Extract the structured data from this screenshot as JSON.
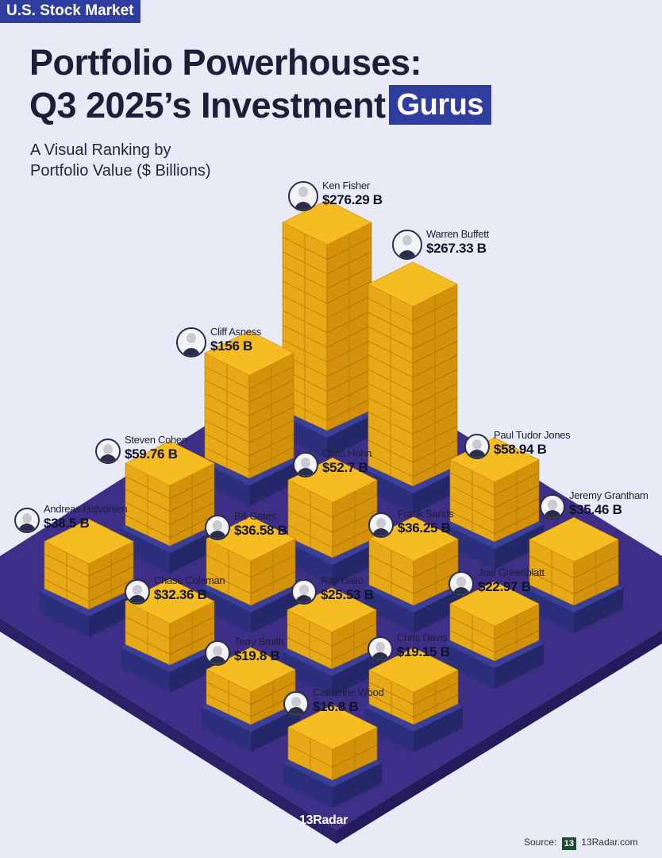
{
  "header": {
    "tag": "U.S. Stock Market",
    "title_line1": "Portfolio Powerhouses:",
    "title_line2": "Q3 2025’s Investment",
    "title_highlight": "Gurus",
    "subtitle_line1": "A Visual Ranking by",
    "subtitle_line2": "Portfolio Value ($ Billions)"
  },
  "chart_data": {
    "type": "bar",
    "unit": "$ Billions",
    "categories": [
      "Ken Fisher",
      "Warren Buffett",
      "Cliff Asness",
      "Steven Cohen",
      "Paul Tudor Jones",
      "Chris Hohn",
      "Andreas Halvorsen",
      "Bill Gates",
      "Frank Sands",
      "Jeremy Grantham",
      "Chase Coleman",
      "Ray Dalio",
      "Joel Greenblatt",
      "Terry Smith",
      "Chris Davis",
      "Catherine Wood"
    ],
    "values": [
      276.29,
      267.33,
      156,
      59.76,
      58.94,
      52.7,
      38.5,
      36.58,
      36.25,
      35.46,
      32.36,
      25.53,
      22.97,
      19.8,
      19.15,
      16.8
    ],
    "value_labels": [
      "$276.29 B",
      "$267.33 B",
      "$156 B",
      "$59.76 B",
      "$58.94 B",
      "$52.7 B",
      "$38.5 B",
      "$36.58 B",
      "$36.25 B",
      "$35.46 B",
      "$32.36 B",
      "$25.53 B",
      "$22.97 B",
      "$19.8 B",
      "$19.15 B",
      "$16.8 B"
    ],
    "colors": {
      "gold": "#f5bd22",
      "pedestal": "#3a3f9a",
      "base": "#3d2f87",
      "accent": "#2f3d9e"
    }
  },
  "footer": {
    "logo": "13Radar",
    "source_label": "Source:",
    "source_mark": "13",
    "source_site": "13Radar.com"
  }
}
